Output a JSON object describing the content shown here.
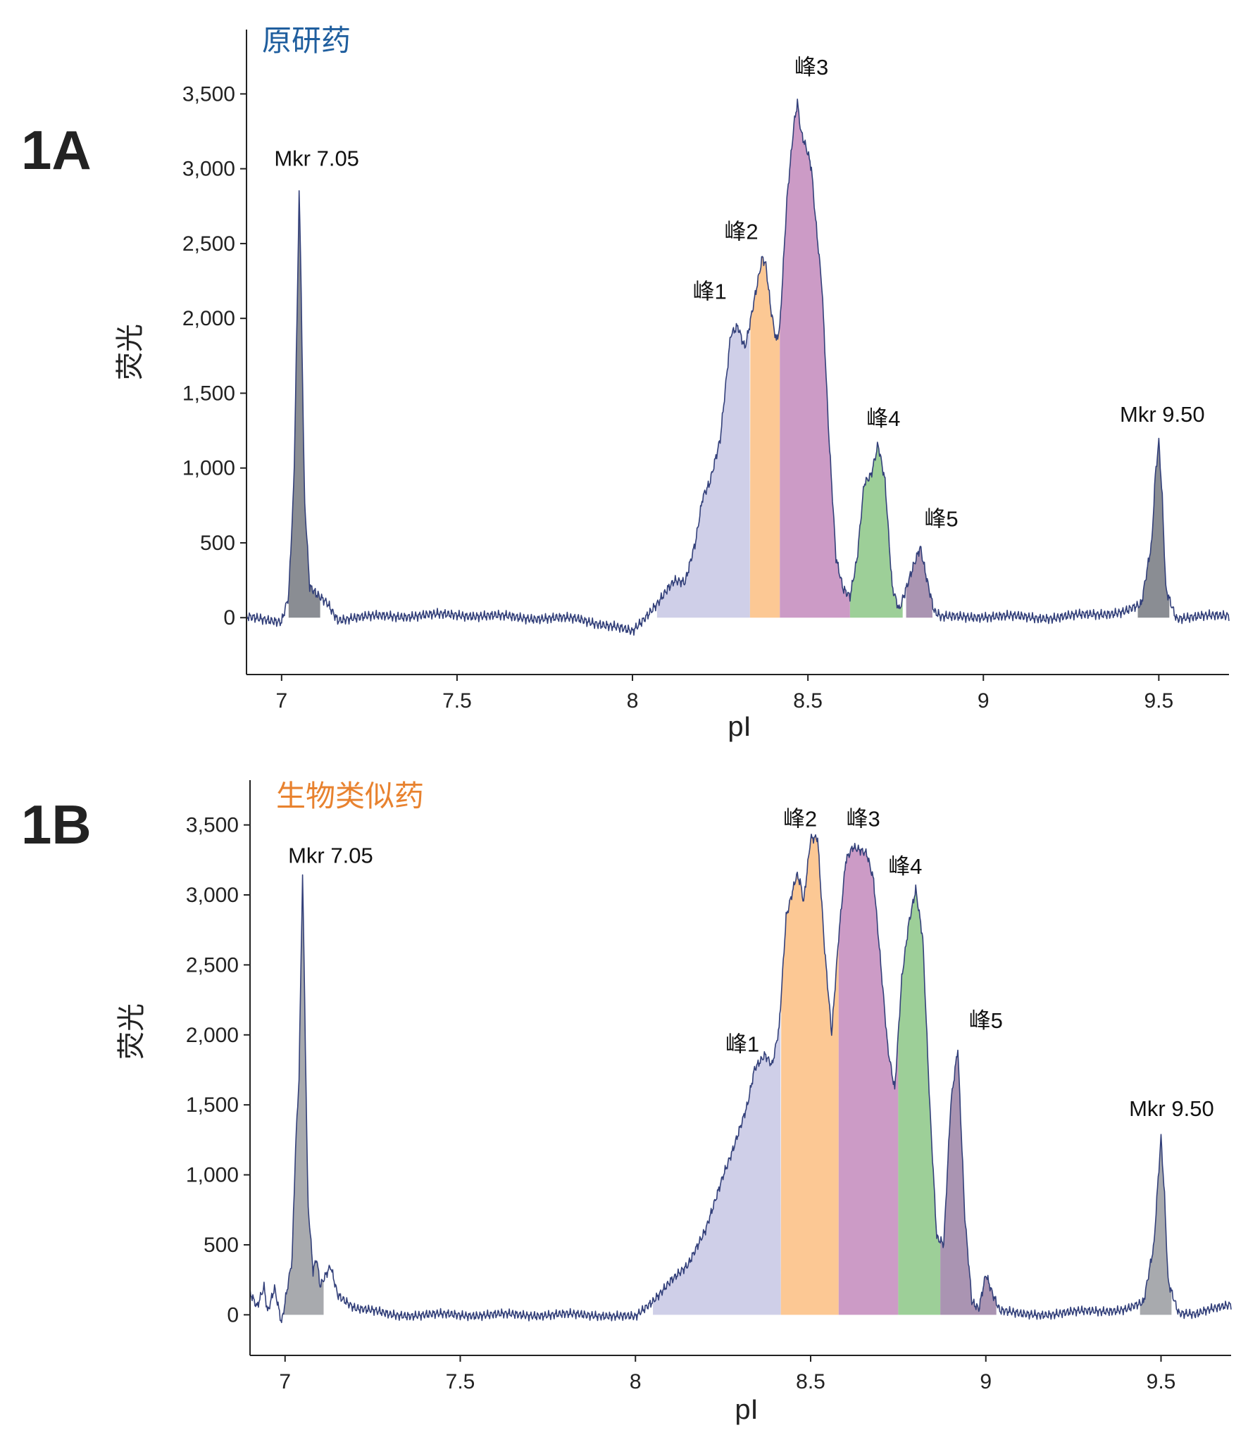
{
  "chart_data": [
    {
      "type": "area",
      "panel_label": "1A",
      "title": "原研药",
      "title_color": "#1f5e9e",
      "xlabel": "pI",
      "ylabel": "荧光",
      "xlim": [
        6.9,
        9.7
      ],
      "ylim": [
        -380,
        3930
      ],
      "x_ticks": [
        7,
        7.5,
        8,
        8.5,
        9,
        9.5
      ],
      "x_tick_labels": [
        "7",
        "7.5",
        "8",
        "8.5",
        "9",
        "9.5"
      ],
      "y_ticks": [
        0,
        500,
        1000,
        1500,
        2000,
        2500,
        3000,
        3500
      ],
      "y_tick_labels": [
        "0",
        "500",
        "1,000",
        "1,500",
        "2,000",
        "2,500",
        "3,000",
        "3,500"
      ],
      "grid": false,
      "trace": {
        "color": "#33407a",
        "x": [
          6.9,
          7.0,
          7.02,
          7.035,
          7.045,
          7.05,
          7.055,
          7.065,
          7.08,
          7.1,
          7.13,
          7.16,
          7.2,
          7.3,
          7.5,
          7.7,
          7.85,
          7.95,
          8.0,
          8.03,
          8.07,
          8.1,
          8.12,
          8.15,
          8.18,
          8.2,
          8.22,
          8.25,
          8.28,
          8.3,
          8.32,
          8.33,
          8.35,
          8.37,
          8.38,
          8.395,
          8.41,
          8.42,
          8.44,
          8.46,
          8.47,
          8.48,
          8.5,
          8.51,
          8.52,
          8.54,
          8.56,
          8.58,
          8.6,
          8.62,
          8.64,
          8.66,
          8.68,
          8.7,
          8.72,
          8.74,
          8.76,
          8.78,
          8.8,
          8.82,
          8.84,
          8.86,
          8.88,
          9.0,
          9.2,
          9.4,
          9.45,
          9.48,
          9.49,
          9.5,
          9.51,
          9.52,
          9.55,
          9.6,
          9.7
        ],
        "y": [
          0,
          -20,
          150,
          900,
          2100,
          2860,
          2300,
          800,
          200,
          150,
          100,
          -10,
          0,
          10,
          20,
          0,
          -10,
          -60,
          -100,
          -20,
          100,
          200,
          250,
          230,
          500,
          800,
          900,
          1200,
          1900,
          1950,
          1800,
          1900,
          2150,
          2400,
          2350,
          2050,
          1850,
          1950,
          2800,
          3300,
          3450,
          3250,
          3100,
          3000,
          2700,
          2200,
          1200,
          400,
          200,
          150,
          400,
          900,
          950,
          1150,
          900,
          200,
          50,
          200,
          350,
          480,
          250,
          40,
          0,
          10,
          0,
          40,
          80,
          500,
          950,
          1180,
          800,
          200,
          0,
          0,
          20
        ]
      },
      "filled_regions": [
        {
          "name": "Mkr 7.05",
          "x": [
            7.02,
            7.11
          ],
          "color": "#8a8d93"
        },
        {
          "name": "峰1",
          "x": [
            8.07,
            8.335
          ],
          "color": "#cfcfe8"
        },
        {
          "name": "峰2",
          "x": [
            8.335,
            8.42
          ],
          "color": "#fcc894"
        },
        {
          "name": "峰3",
          "x": [
            8.42,
            8.62
          ],
          "color": "#cc9bc6"
        },
        {
          "name": "峰4",
          "x": [
            8.62,
            8.77
          ],
          "color": "#9dcf98"
        },
        {
          "name": "峰5",
          "x": [
            8.78,
            8.855
          ],
          "color": "#aa94b2"
        },
        {
          "name": "Mkr 9.50",
          "x": [
            9.44,
            9.53
          ],
          "color": "#8a8d93"
        }
      ],
      "annotations": [
        {
          "text": "Mkr 7.05",
          "x": 7.1,
          "y": 3020
        },
        {
          "text": "峰1",
          "x": 8.22,
          "y": 2130
        },
        {
          "text": "峰2",
          "x": 8.31,
          "y": 2530
        },
        {
          "text": "峰3",
          "x": 8.51,
          "y": 3630
        },
        {
          "text": "峰4",
          "x": 8.715,
          "y": 1280
        },
        {
          "text": "峰5",
          "x": 8.88,
          "y": 610
        },
        {
          "text": "Mkr 9.50",
          "x": 9.51,
          "y": 1310
        }
      ]
    },
    {
      "type": "area",
      "panel_label": "1B",
      "title": "生物类似药",
      "title_color": "#e8822f",
      "xlabel": "pI",
      "ylabel": "荧光",
      "xlim": [
        6.9,
        9.7
      ],
      "ylim": [
        -290,
        3820
      ],
      "x_ticks": [
        7,
        7.5,
        8,
        8.5,
        9,
        9.5
      ],
      "x_tick_labels": [
        "7",
        "7.5",
        "8",
        "8.5",
        "9",
        "9.5"
      ],
      "y_ticks": [
        0,
        500,
        1000,
        1500,
        2000,
        2500,
        3000,
        3500
      ],
      "y_tick_labels": [
        "0",
        "500",
        "1,000",
        "1,500",
        "2,000",
        "2,500",
        "3,000",
        "3,500"
      ],
      "grid": false,
      "trace": {
        "color": "#33407a",
        "x": [
          6.9,
          6.92,
          6.94,
          6.95,
          6.97,
          6.99,
          7.0,
          7.02,
          7.03,
          7.04,
          7.05,
          7.055,
          7.065,
          7.08,
          7.09,
          7.1,
          7.12,
          7.13,
          7.15,
          7.2,
          7.3,
          7.5,
          7.7,
          7.9,
          8.0,
          8.05,
          8.1,
          8.15,
          8.2,
          8.25,
          8.28,
          8.3,
          8.32,
          8.34,
          8.37,
          8.39,
          8.41,
          8.43,
          8.46,
          8.47,
          8.48,
          8.5,
          8.52,
          8.54,
          8.56,
          8.58,
          8.6,
          8.62,
          8.64,
          8.66,
          8.68,
          8.7,
          8.72,
          8.74,
          8.76,
          8.78,
          8.8,
          8.82,
          8.84,
          8.86,
          8.88,
          8.9,
          8.92,
          8.94,
          8.96,
          8.98,
          9.0,
          9.02,
          9.04,
          9.1,
          9.2,
          9.4,
          9.45,
          9.48,
          9.49,
          9.5,
          9.51,
          9.52,
          9.55,
          9.6,
          9.7
        ],
        "y": [
          150,
          50,
          200,
          20,
          200,
          -50,
          100,
          400,
          1200,
          1700,
          3150,
          2400,
          800,
          300,
          400,
          200,
          300,
          350,
          150,
          50,
          0,
          0,
          0,
          0,
          -20,
          100,
          250,
          350,
          600,
          1000,
          1200,
          1350,
          1500,
          1750,
          1850,
          1780,
          2050,
          2850,
          3150,
          3100,
          2950,
          3400,
          3400,
          2600,
          2000,
          2700,
          3250,
          3350,
          3330,
          3300,
          3100,
          2500,
          1900,
          1600,
          2400,
          2800,
          3050,
          2700,
          1500,
          550,
          500,
          1500,
          1900,
          700,
          100,
          50,
          300,
          150,
          30,
          0,
          10,
          40,
          80,
          500,
          900,
          1270,
          850,
          250,
          20,
          0,
          80
        ]
      },
      "filled_regions": [
        {
          "name": "Mkr 7.05",
          "x": [
            6.99,
            7.11
          ],
          "color": "#a8aaae"
        },
        {
          "name": "峰1",
          "x": [
            8.05,
            8.415
          ],
          "color": "#cfcfe8"
        },
        {
          "name": "峰2",
          "x": [
            8.415,
            8.58
          ],
          "color": "#fcc894"
        },
        {
          "name": "峰3",
          "x": [
            8.58,
            8.75
          ],
          "color": "#cc9bc6"
        },
        {
          "name": "峰4",
          "x": [
            8.75,
            8.87
          ],
          "color": "#9dcf98"
        },
        {
          "name": "峰5",
          "x": [
            8.87,
            9.03
          ],
          "color": "#aa94b2"
        },
        {
          "name": "Mkr 9.50",
          "x": [
            9.44,
            9.53
          ],
          "color": "#a8aaae"
        }
      ],
      "annotations": [
        {
          "text": "Mkr 7.05",
          "x": 7.13,
          "y": 3230
        },
        {
          "text": "峰1",
          "x": 8.305,
          "y": 1880
        },
        {
          "text": "峰2",
          "x": 8.47,
          "y": 3490
        },
        {
          "text": "峰3",
          "x": 8.65,
          "y": 3490
        },
        {
          "text": "峰4",
          "x": 8.77,
          "y": 3150
        },
        {
          "text": "峰5",
          "x": 9.0,
          "y": 2050
        },
        {
          "text": "Mkr 9.50",
          "x": 9.53,
          "y": 1420
        }
      ]
    }
  ]
}
